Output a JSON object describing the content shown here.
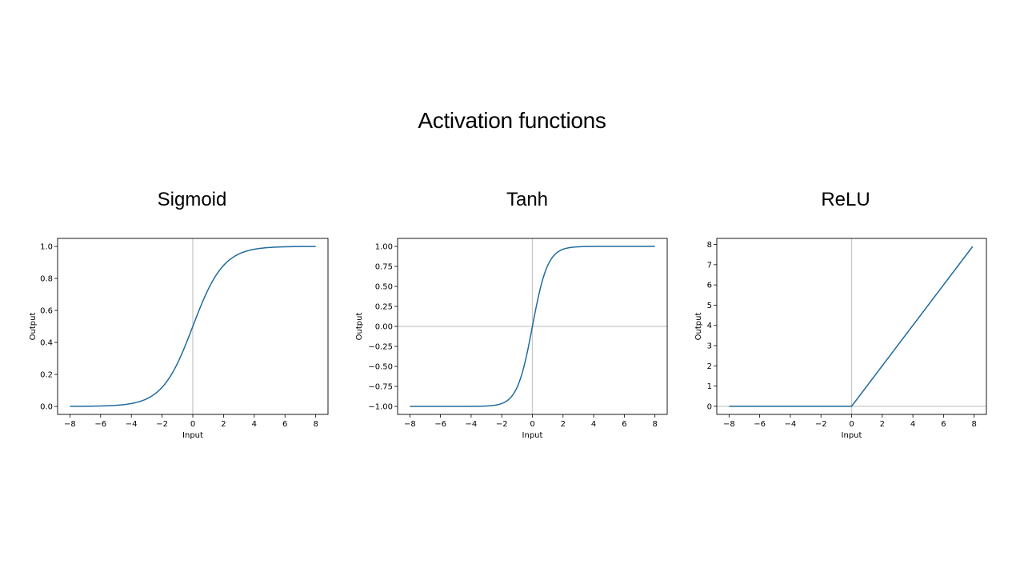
{
  "title": "Activation functions",
  "colors": {
    "line": "#1f6b9c",
    "reference": "#c8c8c8",
    "frame": "#000000"
  },
  "chart_data": [
    {
      "type": "line",
      "title": "Sigmoid",
      "function": "sigmoid",
      "xlabel": "Input",
      "ylabel": "Output",
      "xlim": [
        -8.8,
        8.8
      ],
      "ylim": [
        -0.05,
        1.05
      ],
      "xticks": [
        -8,
        -6,
        -4,
        -2,
        0,
        2,
        4,
        6,
        8
      ],
      "xtick_labels": [
        "−8",
        "−6",
        "−4",
        "−2",
        "0",
        "2",
        "4",
        "6",
        "8"
      ],
      "yticks": [
        0.0,
        0.2,
        0.4,
        0.6,
        0.8,
        1.0
      ],
      "ytick_labels": [
        "0.0",
        "0.2",
        "0.4",
        "0.6",
        "0.8",
        "1.0"
      ],
      "x": [
        -8,
        -7,
        -6,
        -5,
        -4,
        -3,
        -2,
        -1.5,
        -1,
        -0.5,
        0,
        0.5,
        1,
        1.5,
        2,
        3,
        4,
        5,
        6,
        7,
        8
      ],
      "y": [
        0.0003,
        0.0009,
        0.0025,
        0.0067,
        0.018,
        0.0474,
        0.1192,
        0.1824,
        0.2689,
        0.3775,
        0.5,
        0.6225,
        0.7311,
        0.8176,
        0.8808,
        0.9526,
        0.982,
        0.9933,
        0.9975,
        0.9991,
        0.9997
      ],
      "reference_lines": {
        "x": 0
      },
      "grid": false,
      "legend": "none"
    },
    {
      "type": "line",
      "title": "Tanh",
      "function": "tanh",
      "xlabel": "Input",
      "ylabel": "Output",
      "xlim": [
        -8.8,
        8.8
      ],
      "ylim": [
        -1.1,
        1.1
      ],
      "xticks": [
        -8,
        -6,
        -4,
        -2,
        0,
        2,
        4,
        6,
        8
      ],
      "xtick_labels": [
        "−8",
        "−6",
        "−4",
        "−2",
        "0",
        "2",
        "4",
        "6",
        "8"
      ],
      "yticks": [
        -1.0,
        -0.75,
        -0.5,
        -0.25,
        0.0,
        0.25,
        0.5,
        0.75,
        1.0
      ],
      "ytick_labels": [
        "−1.00",
        "−0.75",
        "−0.50",
        "−0.25",
        "0.00",
        "0.25",
        "0.50",
        "0.75",
        "1.00"
      ],
      "x": [
        -8,
        -6,
        -4,
        -3,
        -2,
        -1.5,
        -1,
        -0.5,
        0,
        0.5,
        1,
        1.5,
        2,
        3,
        4,
        6,
        8
      ],
      "y": [
        -1.0,
        -1.0,
        -0.9993,
        -0.9951,
        -0.964,
        -0.9051,
        -0.7616,
        -0.4621,
        0.0,
        0.4621,
        0.7616,
        0.9051,
        0.964,
        0.9951,
        0.9993,
        1.0,
        1.0
      ],
      "reference_lines": {
        "x": 0,
        "y": 0
      },
      "grid": false,
      "legend": "none"
    },
    {
      "type": "line",
      "title": "ReLU",
      "function": "relu",
      "xlabel": "Input",
      "ylabel": "Output",
      "xlim": [
        -8.8,
        8.8
      ],
      "ylim": [
        -0.4,
        8.3
      ],
      "xticks": [
        -8,
        -6,
        -4,
        -2,
        0,
        2,
        4,
        6,
        8
      ],
      "xtick_labels": [
        "−8",
        "−6",
        "−4",
        "−2",
        "0",
        "2",
        "4",
        "6",
        "8"
      ],
      "yticks": [
        0,
        1,
        2,
        3,
        4,
        5,
        6,
        7,
        8
      ],
      "ytick_labels": [
        "0",
        "1",
        "2",
        "3",
        "4",
        "5",
        "6",
        "7",
        "8"
      ],
      "x": [
        -8,
        0,
        7.9
      ],
      "y": [
        0,
        0,
        7.9
      ],
      "reference_lines": {
        "x": 0,
        "y": 0
      },
      "grid": false,
      "legend": "none"
    }
  ]
}
